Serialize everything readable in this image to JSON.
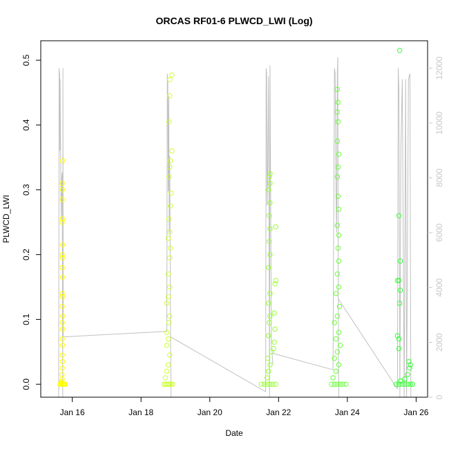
{
  "chart_data": {
    "type": "scatter",
    "title": "ORCAS RF01-6 PLWCD_LWI (Log)",
    "xlabel": "Date",
    "ylabel": "PLWCD_LWI",
    "x_axis": {
      "type": "date",
      "range": [
        "2016-01-15T02:00",
        "2016-01-26T08:00"
      ],
      "ticks": [
        "2016-01-16",
        "2016-01-18",
        "2016-01-20",
        "2016-01-22",
        "2016-01-24",
        "2016-01-26"
      ],
      "tick_labels": [
        "Jan 16",
        "Jan 18",
        "Jan 20",
        "Jan 22",
        "Jan 24",
        "Jan 26"
      ]
    },
    "y_axis": {
      "range": [
        -0.02,
        0.53
      ],
      "ticks": [
        0.0,
        0.1,
        0.2,
        0.3,
        0.4,
        0.5
      ],
      "tick_labels": [
        "0.0",
        "0.1",
        "0.2",
        "0.3",
        "0.4",
        "0.5"
      ]
    },
    "y2_axis": {
      "range": [
        0,
        13000
      ],
      "ticks": [
        0,
        2000,
        4000,
        6000,
        8000,
        10000,
        12000
      ],
      "tick_labels": [
        "0",
        "2000",
        "4000",
        "6000",
        "8000",
        "10000",
        "12000"
      ],
      "color": "#c8c8c8"
    },
    "grid": false,
    "legend": "none",
    "line_series": {
      "color": "#c0c0c0",
      "segments": [
        [
          [
            "2016-01-15T14:30",
            0
          ],
          [
            "2016-01-15T14:50",
            12000
          ],
          [
            "2016-01-15T15:10",
            11800
          ],
          [
            "2016-01-15T15:20",
            9000
          ],
          [
            "2016-01-15T15:30",
            11600
          ],
          [
            "2016-01-15T16:00",
            8000
          ],
          [
            "2016-01-15T16:20",
            6500
          ],
          [
            "2016-01-15T16:40",
            8000
          ],
          [
            "2016-01-15T17:00",
            8200
          ],
          [
            "2016-01-15T17:20",
            0
          ],
          [
            "2016-01-15T17:30",
            12000
          ],
          [
            "2016-01-15T17:40",
            2200
          ]
        ],
        [
          [
            "2016-01-15T17:40",
            2200
          ],
          [
            "2016-01-18T18:00",
            2400
          ]
        ],
        [
          [
            "2016-01-18T18:00",
            2400
          ],
          [
            "2016-01-18T18:20",
            11800
          ],
          [
            "2016-01-18T18:40",
            11500
          ],
          [
            "2016-01-18T19:00",
            7500
          ],
          [
            "2016-01-18T19:20",
            11000
          ],
          [
            "2016-01-18T19:40",
            6000
          ],
          [
            "2016-01-18T20:00",
            8800
          ],
          [
            "2016-01-18T20:20",
            5200
          ],
          [
            "2016-01-18T20:40",
            1800
          ],
          [
            "2016-01-18T21:00",
            0
          ]
        ],
        [
          [
            "2016-01-18T20:40",
            2200
          ],
          [
            "2016-01-21T15:00",
            200
          ]
        ],
        [
          [
            "2016-01-21T15:00",
            200
          ],
          [
            "2016-01-21T15:20",
            12000
          ],
          [
            "2016-01-21T15:40",
            11800
          ],
          [
            "2016-01-21T16:00",
            7000
          ],
          [
            "2016-01-21T16:30",
            8500
          ],
          [
            "2016-01-21T17:00",
            11700
          ],
          [
            "2016-01-21T17:40",
            0
          ],
          [
            "2016-01-21T18:00",
            12100
          ],
          [
            "2016-01-21T19:00",
            2000
          ],
          [
            "2016-01-21T20:00",
            1200
          ]
        ],
        [
          [
            "2016-01-21T20:00",
            1600
          ],
          [
            "2016-01-23T14:00",
            1000
          ]
        ],
        [
          [
            "2016-01-23T14:00",
            1000
          ],
          [
            "2016-01-23T14:20",
            5000
          ],
          [
            "2016-01-23T15:00",
            12000
          ],
          [
            "2016-01-23T15:30",
            11800
          ],
          [
            "2016-01-23T16:00",
            7500
          ],
          [
            "2016-01-23T16:30",
            6000
          ],
          [
            "2016-01-23T17:00",
            11800
          ],
          [
            "2016-01-23T17:20",
            12400
          ],
          [
            "2016-01-23T17:40",
            3600
          ],
          [
            "2016-01-23T18:00",
            0
          ]
        ],
        [
          [
            "2016-01-23T17:30",
            3600
          ],
          [
            "2016-01-25T11:00",
            300
          ]
        ],
        [
          [
            "2016-01-25T11:00",
            300
          ],
          [
            "2016-01-25T11:30",
            12000
          ],
          [
            "2016-01-25T12:00",
            11200
          ],
          [
            "2016-01-25T12:40",
            0
          ],
          [
            "2016-01-25T13:20",
            9000
          ],
          [
            "2016-01-25T14:20",
            11600
          ],
          [
            "2016-01-25T15:40",
            0
          ],
          [
            "2016-01-25T16:40",
            11600
          ],
          [
            "2016-01-25T17:20",
            0
          ],
          [
            "2016-01-25T18:40",
            11600
          ],
          [
            "2016-01-25T19:40",
            11800
          ],
          [
            "2016-01-25T20:20",
            0
          ]
        ]
      ]
    },
    "scatter_groups": [
      {
        "color": "#ffff00",
        "points": [
          [
            "2016-01-15T16:00",
            0.001
          ],
          [
            "2016-01-15T16:20",
            0.002
          ],
          [
            "2016-01-15T16:40",
            0.004
          ],
          [
            "2016-01-15T17:00",
            0.008
          ],
          [
            "2016-01-15T16:50",
            0.015
          ],
          [
            "2016-01-15T17:00",
            0.025
          ],
          [
            "2016-01-15T17:10",
            0.035
          ],
          [
            "2016-01-15T17:00",
            0.045
          ],
          [
            "2016-01-15T17:10",
            0.06
          ],
          [
            "2016-01-15T17:00",
            0.07
          ],
          [
            "2016-01-15T17:10",
            0.085
          ],
          [
            "2016-01-15T17:00",
            0.095
          ],
          [
            "2016-01-15T17:10",
            0.105
          ],
          [
            "2016-01-15T17:00",
            0.12
          ],
          [
            "2016-01-15T17:10",
            0.135
          ],
          [
            "2016-01-15T17:00",
            0.14
          ],
          [
            "2016-01-15T17:10",
            0.165
          ],
          [
            "2016-01-15T17:00",
            0.18
          ],
          [
            "2016-01-15T17:10",
            0.195
          ],
          [
            "2016-01-15T17:00",
            0.2
          ],
          [
            "2016-01-15T17:10",
            0.215
          ],
          [
            "2016-01-15T17:00",
            0.25
          ],
          [
            "2016-01-15T17:10",
            0.255
          ],
          [
            "2016-01-15T17:00",
            0.285
          ],
          [
            "2016-01-15T17:10",
            0.3
          ],
          [
            "2016-01-15T17:00",
            0.31
          ],
          [
            "2016-01-15T17:10",
            0.345
          ],
          [
            "2016-01-15T15:20",
            0.0
          ],
          [
            "2016-01-15T16:00",
            0.0
          ],
          [
            "2016-01-15T16:40",
            0.0
          ],
          [
            "2016-01-15T17:20",
            0.0
          ],
          [
            "2016-01-15T18:00",
            0.0
          ],
          [
            "2016-01-15T18:30",
            0.0
          ],
          [
            "2016-01-15T19:00",
            0.0
          ]
        ]
      },
      {
        "color": "#ccff33",
        "points": [
          [
            "2016-01-18T16:00",
            0.0
          ],
          [
            "2016-01-18T17:00",
            0.0
          ],
          [
            "2016-01-18T18:00",
            0.0
          ],
          [
            "2016-01-18T19:00",
            0.0
          ],
          [
            "2016-01-18T20:00",
            0.0
          ],
          [
            "2016-01-18T21:00",
            0.0
          ],
          [
            "2016-01-18T22:00",
            0.0
          ],
          [
            "2016-01-18T17:00",
            0.01
          ],
          [
            "2016-01-18T18:00",
            0.02
          ],
          [
            "2016-01-18T19:00",
            0.03
          ],
          [
            "2016-01-18T20:00",
            0.045
          ],
          [
            "2016-01-18T18:00",
            0.06
          ],
          [
            "2016-01-18T19:00",
            0.07
          ],
          [
            "2016-01-18T18:00",
            0.08
          ],
          [
            "2016-01-18T19:30",
            0.095
          ],
          [
            "2016-01-18T20:00",
            0.105
          ],
          [
            "2016-01-18T18:00",
            0.125
          ],
          [
            "2016-01-18T19:00",
            0.135
          ],
          [
            "2016-01-18T20:00",
            0.15
          ],
          [
            "2016-01-18T19:00",
            0.17
          ],
          [
            "2016-01-18T20:00",
            0.195
          ],
          [
            "2016-01-18T20:30",
            0.21
          ],
          [
            "2016-01-18T19:00",
            0.225
          ],
          [
            "2016-01-18T20:00",
            0.235
          ],
          [
            "2016-01-18T19:30",
            0.255
          ],
          [
            "2016-01-18T20:30",
            0.275
          ],
          [
            "2016-01-18T21:00",
            0.295
          ],
          [
            "2016-01-18T19:30",
            0.32
          ],
          [
            "2016-01-18T20:00",
            0.335
          ],
          [
            "2016-01-18T20:30",
            0.345
          ],
          [
            "2016-01-18T21:30",
            0.36
          ],
          [
            "2016-01-18T19:30",
            0.405
          ],
          [
            "2016-01-18T20:00",
            0.445
          ],
          [
            "2016-01-18T20:00",
            0.47
          ],
          [
            "2016-01-18T21:30",
            0.477
          ]
        ]
      },
      {
        "color": "#99ff33",
        "points": [
          [
            "2016-01-21T12:00",
            0.0
          ],
          [
            "2016-01-21T14:00",
            0.0
          ],
          [
            "2016-01-21T16:00",
            0.0
          ],
          [
            "2016-01-21T18:00",
            0.0
          ],
          [
            "2016-01-21T20:00",
            0.0
          ],
          [
            "2016-01-21T22:00",
            0.0
          ],
          [
            "2016-01-21T16:00",
            0.01
          ],
          [
            "2016-01-21T17:00",
            0.02
          ],
          [
            "2016-01-21T18:00",
            0.03
          ],
          [
            "2016-01-21T16:30",
            0.04
          ],
          [
            "2016-01-21T19:00",
            0.05
          ],
          [
            "2016-01-21T20:30",
            0.055
          ],
          [
            "2016-01-21T21:00",
            0.065
          ],
          [
            "2016-01-21T17:00",
            0.075
          ],
          [
            "2016-01-21T21:30",
            0.085
          ],
          [
            "2016-01-21T17:30",
            0.095
          ],
          [
            "2016-01-21T18:00",
            0.105
          ],
          [
            "2016-01-21T21:00",
            0.11
          ],
          [
            "2016-01-21T17:00",
            0.125
          ],
          [
            "2016-01-21T18:00",
            0.14
          ],
          [
            "2016-01-21T21:30",
            0.155
          ],
          [
            "2016-01-21T22:00",
            0.16
          ],
          [
            "2016-01-21T17:00",
            0.18
          ],
          [
            "2016-01-21T18:00",
            0.2
          ],
          [
            "2016-01-21T17:30",
            0.22
          ],
          [
            "2016-01-21T18:00",
            0.24
          ],
          [
            "2016-01-21T22:00",
            0.243
          ],
          [
            "2016-01-21T17:30",
            0.26
          ],
          [
            "2016-01-21T18:00",
            0.28
          ],
          [
            "2016-01-21T17:00",
            0.3
          ],
          [
            "2016-01-21T18:00",
            0.31
          ],
          [
            "2016-01-21T17:30",
            0.32
          ],
          [
            "2016-01-21T18:00",
            0.325
          ]
        ]
      },
      {
        "color": "#66ff33",
        "points": [
          [
            "2016-01-23T13:00",
            0.0
          ],
          [
            "2016-01-23T15:00",
            0.0
          ],
          [
            "2016-01-23T17:00",
            0.0
          ],
          [
            "2016-01-23T19:00",
            0.0
          ],
          [
            "2016-01-23T21:00",
            0.0
          ],
          [
            "2016-01-23T23:00",
            0.0
          ],
          [
            "2016-01-23T14:00",
            0.01
          ],
          [
            "2016-01-23T16:00",
            0.02
          ],
          [
            "2016-01-23T18:00",
            0.03
          ],
          [
            "2016-01-23T15:00",
            0.04
          ],
          [
            "2016-01-23T17:00",
            0.05
          ],
          [
            "2016-01-23T19:00",
            0.06
          ],
          [
            "2016-01-23T16:00",
            0.07
          ],
          [
            "2016-01-23T18:00",
            0.08
          ],
          [
            "2016-01-23T15:00",
            0.095
          ],
          [
            "2016-01-23T17:00",
            0.105
          ],
          [
            "2016-01-23T18:30",
            0.12
          ],
          [
            "2016-01-23T16:00",
            0.14
          ],
          [
            "2016-01-23T18:00",
            0.15
          ],
          [
            "2016-01-23T17:00",
            0.17
          ],
          [
            "2016-01-23T18:00",
            0.19
          ],
          [
            "2016-01-23T17:30",
            0.21
          ],
          [
            "2016-01-23T18:00",
            0.23
          ],
          [
            "2016-01-23T17:00",
            0.245
          ],
          [
            "2016-01-23T18:00",
            0.27
          ],
          [
            "2016-01-23T17:30",
            0.29
          ],
          [
            "2016-01-23T17:00",
            0.32
          ],
          [
            "2016-01-23T17:30",
            0.335
          ],
          [
            "2016-01-23T18:00",
            0.355
          ],
          [
            "2016-01-23T17:00",
            0.375
          ],
          [
            "2016-01-23T17:30",
            0.405
          ],
          [
            "2016-01-23T17:00",
            0.42
          ],
          [
            "2016-01-23T17:30",
            0.435
          ],
          [
            "2016-01-23T17:00",
            0.455
          ]
        ]
      },
      {
        "color": "#33ff33",
        "points": [
          [
            "2016-01-25T10:00",
            0.0
          ],
          [
            "2016-01-25T12:00",
            0.0
          ],
          [
            "2016-01-25T14:00",
            0.0
          ],
          [
            "2016-01-25T16:00",
            0.0
          ],
          [
            "2016-01-25T18:00",
            0.0
          ],
          [
            "2016-01-25T20:00",
            0.0
          ],
          [
            "2016-01-25T21:30",
            0.0
          ],
          [
            "2016-01-25T13:00",
            0.005
          ],
          [
            "2016-01-25T16:00",
            0.008
          ],
          [
            "2016-01-25T18:00",
            0.015
          ],
          [
            "2016-01-25T19:30",
            0.025
          ],
          [
            "2016-01-25T20:00",
            0.03
          ],
          [
            "2016-01-25T19:00",
            0.035
          ],
          [
            "2016-01-25T12:00",
            0.055
          ],
          [
            "2016-01-25T11:00",
            0.075
          ],
          [
            "2016-01-25T12:00",
            0.07
          ],
          [
            "2016-01-25T13:00",
            0.145
          ],
          [
            "2016-01-25T12:00",
            0.16
          ],
          [
            "2016-01-25T11:00",
            0.16
          ],
          [
            "2016-01-25T12:30",
            0.125
          ],
          [
            "2016-01-25T13:00",
            0.19
          ],
          [
            "2016-01-25T12:00",
            0.26
          ],
          [
            "2016-01-25T12:30",
            0.515
          ]
        ]
      }
    ]
  }
}
